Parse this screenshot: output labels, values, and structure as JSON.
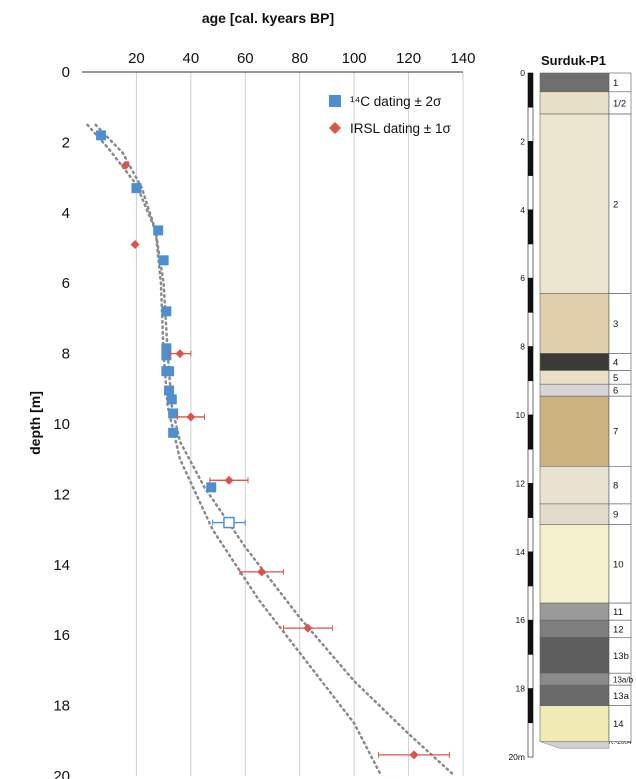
{
  "chart_data": {
    "type": "scatter",
    "title": "age [cal. kyears BP]",
    "xlabel": "age [cal. kyears BP]",
    "ylabel": "depth [m]",
    "xlim": [
      0,
      140
    ],
    "ylim": [
      20,
      0
    ],
    "x_ticks": [
      20,
      40,
      60,
      80,
      100,
      120,
      140
    ],
    "y_ticks": [
      0,
      2,
      4,
      6,
      8,
      10,
      12,
      14,
      16,
      18,
      20
    ],
    "legend_position": "top-right",
    "series": [
      {
        "name": "14C dating ± 2σ",
        "marker": "square",
        "color": "#4f8fd0",
        "points": [
          {
            "age": 7,
            "depth": 1.8
          },
          {
            "age": 20,
            "depth": 3.3
          },
          {
            "age": 28,
            "depth": 4.5
          },
          {
            "age": 30,
            "depth": 5.35
          },
          {
            "age": 31,
            "depth": 6.8
          },
          {
            "age": 31,
            "depth": 7.85
          },
          {
            "age": 31,
            "depth": 8.05
          },
          {
            "age": 31,
            "depth": 8.5
          },
          {
            "age": 32,
            "depth": 8.5
          },
          {
            "age": 32,
            "depth": 9.05
          },
          {
            "age": 33,
            "depth": 9.3
          },
          {
            "age": 33.5,
            "depth": 9.7
          },
          {
            "age": 33.5,
            "depth": 10.25
          },
          {
            "age": 47.5,
            "depth": 11.8
          },
          {
            "age": 54,
            "depth": 12.8,
            "err": 6,
            "open": true
          }
        ]
      },
      {
        "name": "IRSL dating ± 1σ",
        "marker": "diamond",
        "color": "#d9534f",
        "points": [
          {
            "age": 16,
            "depth": 2.65
          },
          {
            "age": 19.5,
            "depth": 4.9
          },
          {
            "age": 36,
            "depth": 8.0,
            "err": 4
          },
          {
            "age": 40,
            "depth": 9.8,
            "err": 5
          },
          {
            "age": 54,
            "depth": 11.6,
            "err": 7
          },
          {
            "age": 66,
            "depth": 14.2,
            "err": 8
          },
          {
            "age": 83,
            "depth": 15.8,
            "err": 9
          },
          {
            "age": 122,
            "depth": 19.4,
            "err": 13
          }
        ]
      }
    ],
    "trend_lines": [
      {
        "style": "dotted",
        "points": [
          [
            2,
            1.5
          ],
          [
            10,
            2.2
          ],
          [
            20,
            3.2
          ],
          [
            27,
            4.5
          ],
          [
            30,
            6.0
          ],
          [
            31.5,
            8.0
          ],
          [
            33,
            9.5
          ],
          [
            36,
            10.5
          ],
          [
            45,
            11.8
          ],
          [
            60,
            13.5
          ],
          [
            80,
            15.5
          ],
          [
            100,
            17.3
          ],
          [
            120,
            18.8
          ],
          [
            137,
            20.0
          ]
        ]
      },
      {
        "style": "dotted",
        "points": [
          [
            5,
            1.5
          ],
          [
            15,
            2.3
          ],
          [
            22,
            3.3
          ],
          [
            27,
            4.5
          ],
          [
            29,
            6.0
          ],
          [
            30,
            8.0
          ],
          [
            31.5,
            9.5
          ],
          [
            36,
            11.0
          ],
          [
            48,
            13.0
          ],
          [
            65,
            15.0
          ],
          [
            85,
            17.0
          ],
          [
            100,
            18.5
          ],
          [
            110,
            20.0
          ]
        ]
      }
    ]
  },
  "legend": {
    "c14_label": "¹⁴C dating ± 2σ",
    "irsl_label": "IRSL dating ± 1σ"
  },
  "profile": {
    "title": "Surduk-P1",
    "depth_labels": [
      "0",
      "2",
      "4",
      "6",
      "8",
      "10",
      "12",
      "14",
      "16",
      "18",
      "20m"
    ],
    "credit": "P.A./O.D.R.-2004",
    "units": [
      {
        "label": "1",
        "top": 0,
        "bottom": 0.55,
        "color": "#6f6f6f"
      },
      {
        "label": "1/2",
        "top": 0.55,
        "bottom": 1.2,
        "color": "#e6e0c8"
      },
      {
        "label": "2",
        "top": 1.2,
        "bottom": 6.45,
        "color": "#ebe6cf"
      },
      {
        "label": "3",
        "top": 6.45,
        "bottom": 8.2,
        "color": "#e0cfaa"
      },
      {
        "label": "4",
        "top": 8.2,
        "bottom": 8.7,
        "color": "#3c3a36"
      },
      {
        "label": "5",
        "top": 8.7,
        "bottom": 9.1,
        "color": "#e7dfc6"
      },
      {
        "label": "6",
        "top": 9.1,
        "bottom": 9.45,
        "color": "#d6d6d6"
      },
      {
        "label": "7",
        "top": 9.45,
        "bottom": 11.5,
        "color": "#cdb380"
      },
      {
        "label": "8",
        "top": 11.5,
        "bottom": 12.6,
        "color": "#e8e2d0"
      },
      {
        "label": "9",
        "top": 12.6,
        "bottom": 13.2,
        "color": "#e3dccb"
      },
      {
        "label": "10",
        "top": 13.2,
        "bottom": 15.5,
        "color": "#f4efcc"
      },
      {
        "label": "11",
        "top": 15.5,
        "bottom": 16.0,
        "color": "#9a9a9a"
      },
      {
        "label": "12",
        "top": 16.0,
        "bottom": 16.5,
        "color": "#7e7e7e"
      },
      {
        "label": "13b",
        "top": 16.5,
        "bottom": 17.55,
        "color": "#5e5e5e"
      },
      {
        "label": "13a/b",
        "top": 17.55,
        "bottom": 17.9,
        "color": "#8a8a8a"
      },
      {
        "label": "13a",
        "top": 17.9,
        "bottom": 18.5,
        "color": "#6a6a6a"
      },
      {
        "label": "14",
        "top": 18.5,
        "bottom": 19.55,
        "color": "#f0eab4"
      }
    ]
  }
}
